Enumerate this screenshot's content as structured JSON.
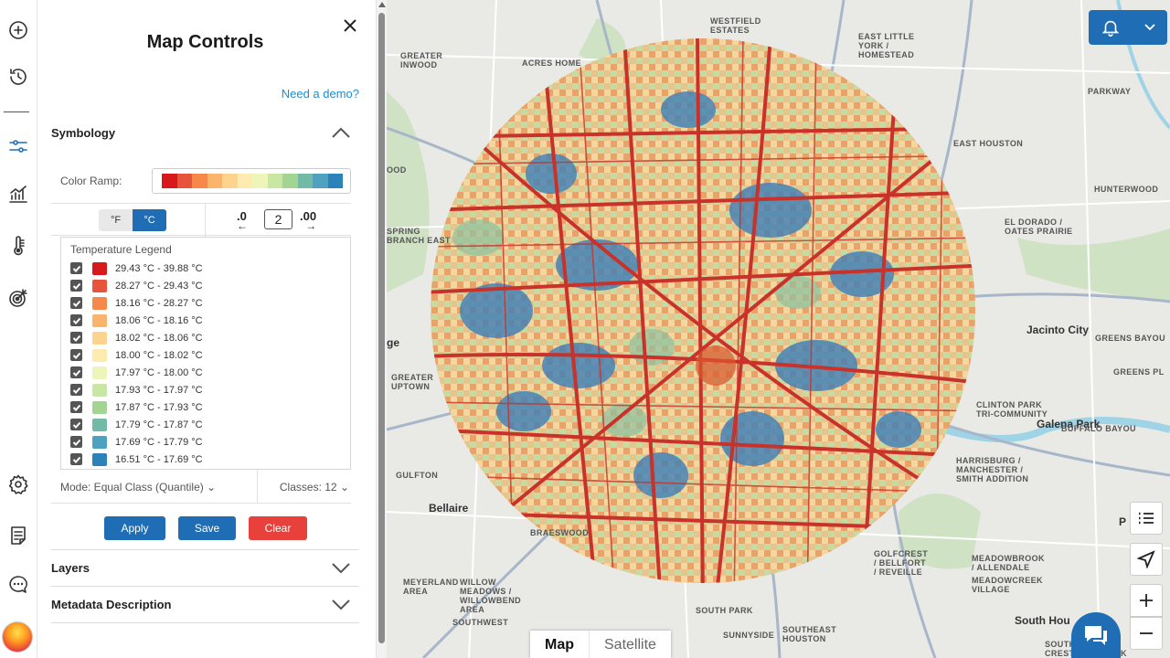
{
  "panel": {
    "title": "Map Controls",
    "demo_link": "Need a demo?",
    "symbology_label": "Symbology",
    "color_ramp_label": "Color Ramp:",
    "color_ramp": [
      "#d7191c",
      "#e8543b",
      "#f4894a",
      "#fbb46b",
      "#fdd48e",
      "#fdebb0",
      "#eef5b9",
      "#c8e6a4",
      "#a3d494",
      "#72b9a6",
      "#4fa1c0",
      "#2b83ba"
    ],
    "unit_f": "°F",
    "unit_c": "°C",
    "decimals_less": ".0",
    "decimals_more": ".00",
    "decimals_value": "2",
    "legend_title": "Temperature Legend",
    "legend": [
      {
        "color": "#d7191c",
        "label": "29.43 °C  - 39.88 °C"
      },
      {
        "color": "#e8543b",
        "label": "28.27 °C  - 29.43 °C"
      },
      {
        "color": "#f4894a",
        "label": "18.16 °C  - 28.27 °C"
      },
      {
        "color": "#fbb46b",
        "label": "18.06 °C  - 18.16 °C"
      },
      {
        "color": "#fdd48e",
        "label": "18.02 °C  - 18.06 °C"
      },
      {
        "color": "#fdebb0",
        "label": "18.00 °C  - 18.02 °C"
      },
      {
        "color": "#eef5b9",
        "label": "17.97 °C  - 18.00 °C"
      },
      {
        "color": "#c8e6a4",
        "label": "17.93 °C  - 17.97 °C"
      },
      {
        "color": "#a3d494",
        "label": "17.87 °C  - 17.93 °C"
      },
      {
        "color": "#72b9a6",
        "label": "17.79 °C  - 17.87 °C"
      },
      {
        "color": "#4fa1c0",
        "label": "17.69 °C  - 17.79 °C"
      },
      {
        "color": "#2b83ba",
        "label": "16.51 °C  - 17.69 °C"
      }
    ],
    "mode_label": "Mode: Equal Class (Quantile)",
    "classes_label": "Classes: 12",
    "apply": "Apply",
    "save": "Save",
    "clear": "Clear",
    "layers_label": "Layers",
    "metadata_label": "Metadata Description"
  },
  "map": {
    "labels": [
      {
        "text": "WESTFIELD\nESTATES"
      },
      {
        "text": "EAST LITTLE\nYORK /\nHOMESTEAD"
      },
      {
        "text": "GREATER\nINWOOD"
      },
      {
        "text": "ACRES HOME"
      },
      {
        "text": "PARKWAY"
      },
      {
        "text": "EAST HOUSTON"
      },
      {
        "text": "HUNTERWOOD"
      },
      {
        "text": "EL DORADO /\nOATES PRAIRIE"
      },
      {
        "text": "SPRING\nBRANCH EAST"
      },
      {
        "text": "GREATER\nUPTOWN"
      },
      {
        "text": "GREENS BAYOU"
      },
      {
        "text": "GREENS PL"
      },
      {
        "text": "CLINTON PARK\nTRI-COMMUNITY"
      },
      {
        "text": "HARRISBURG /\nMANCHESTER /\nSMITH ADDITION"
      },
      {
        "text": "GULFTON"
      },
      {
        "text": "BRAESWOOD"
      },
      {
        "text": "GOLFCREST\n/ BELLFORT\n/ REVEILLE"
      },
      {
        "text": "MEADOWBROOK\n/ ALLENDALE"
      },
      {
        "text": "MEADOWCREEK\nVILLAGE"
      },
      {
        "text": "MEYERLAND\nAREA"
      },
      {
        "text": "WILLOW\nMEADOWS /\nWILLOWBEND\nAREA"
      },
      {
        "text": "SOUTH PARK"
      },
      {
        "text": "SOUTHWEST"
      },
      {
        "text": "SOUTHEAST\nHOUSTON"
      },
      {
        "text": "SUNNYSIDE"
      },
      {
        "text": "SOUTH ACRES /\nCRESTMONT PARK"
      },
      {
        "text": "Jacinto City"
      },
      {
        "text": "Galena Park"
      },
      {
        "text": "Bellaire"
      },
      {
        "text": "South Hou"
      },
      {
        "text": "ge"
      },
      {
        "text": "OOD"
      },
      {
        "text": "Buffalo Bayou"
      },
      {
        "text": "P"
      }
    ],
    "map_type_map": "Map",
    "map_type_satellite": "Satellite"
  }
}
